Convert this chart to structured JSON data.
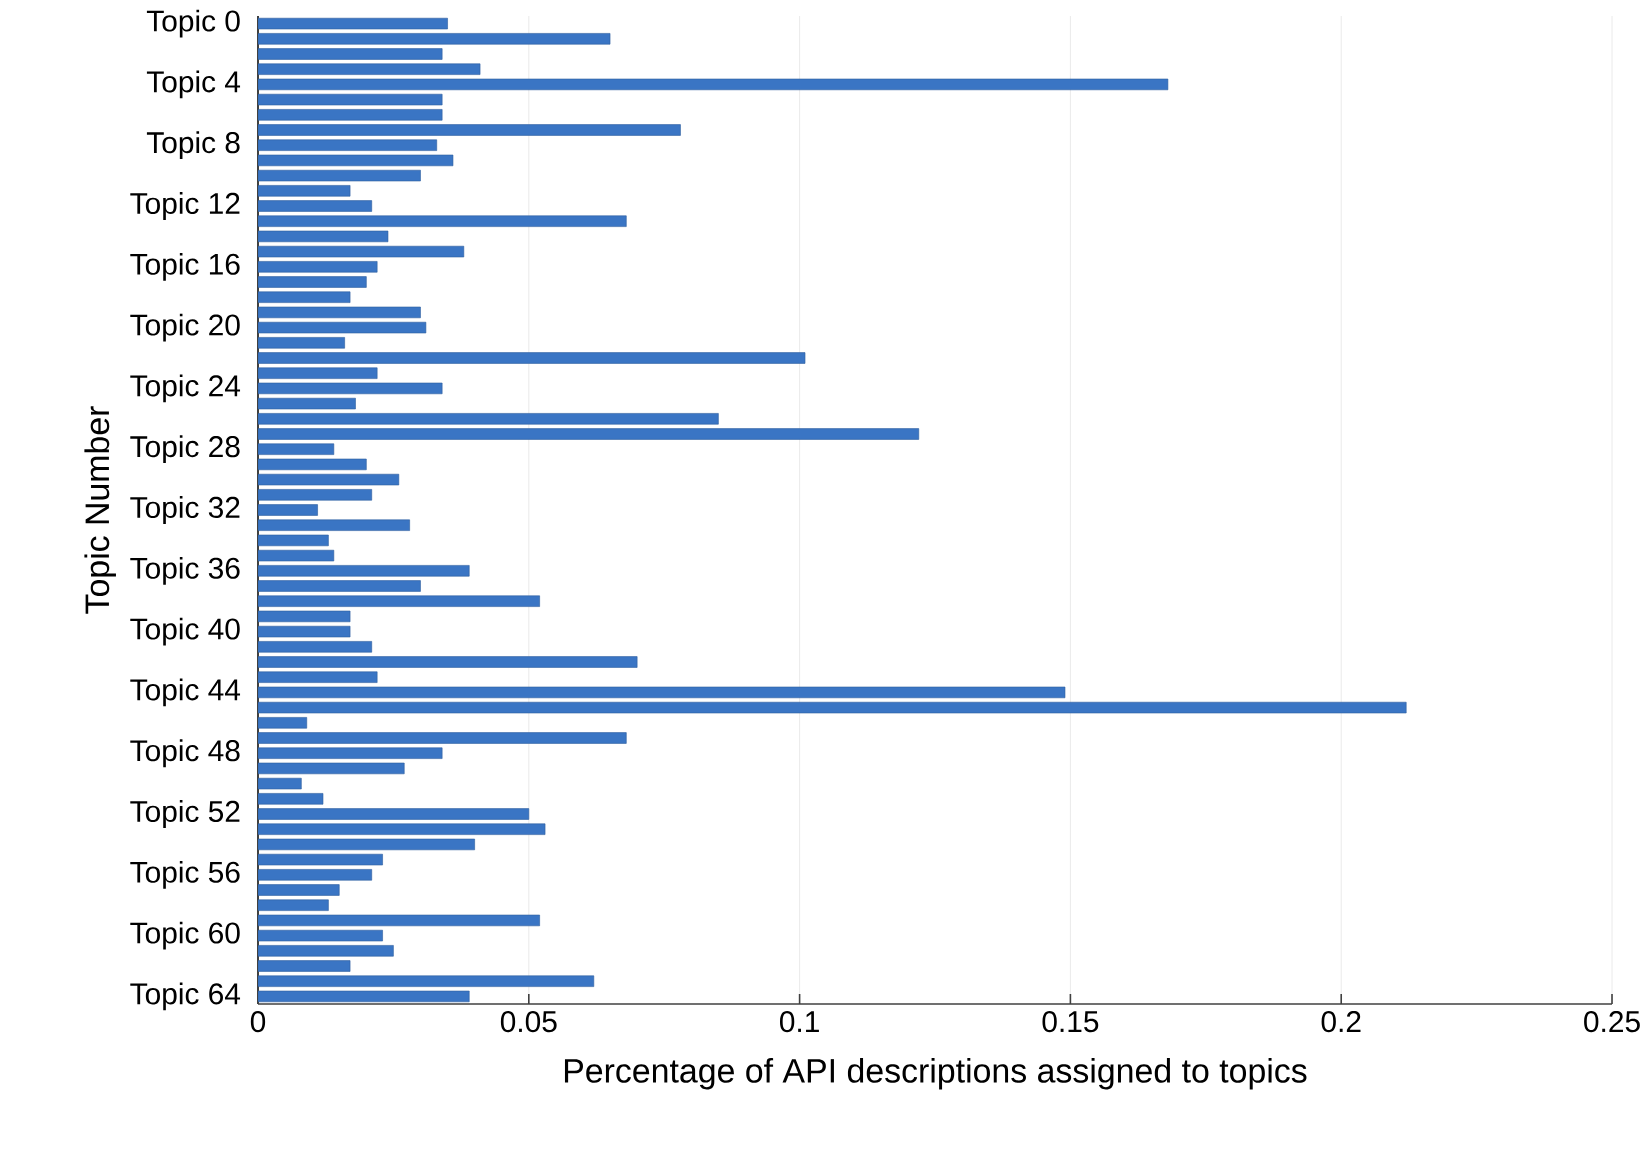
{
  "chart_data": {
    "type": "bar",
    "orientation": "horizontal",
    "xlabel": "Percentage of API descriptions assigned to topics",
    "ylabel": "Topic Number",
    "categories": [
      "Topic 0",
      null,
      null,
      null,
      "Topic 4",
      null,
      null,
      null,
      "Topic 8",
      null,
      null,
      null,
      "Topic 12",
      null,
      null,
      null,
      "Topic 16",
      null,
      null,
      null,
      "Topic 20",
      null,
      null,
      null,
      "Topic 24",
      null,
      null,
      null,
      "Topic 28",
      null,
      null,
      null,
      "Topic 32",
      null,
      null,
      null,
      "Topic 36",
      null,
      null,
      null,
      "Topic 40",
      null,
      null,
      null,
      "Topic 44",
      null,
      null,
      null,
      "Topic 48",
      null,
      null,
      null,
      "Topic 52",
      null,
      null,
      null,
      "Topic 56",
      null,
      null,
      null,
      "Topic 60",
      null,
      null,
      null,
      "Topic 64"
    ],
    "values": [
      0.035,
      0.065,
      0.034,
      0.041,
      0.168,
      0.034,
      0.034,
      0.078,
      0.033,
      0.036,
      0.03,
      0.017,
      0.021,
      0.068,
      0.024,
      0.038,
      0.022,
      0.02,
      0.017,
      0.03,
      0.031,
      0.016,
      0.101,
      0.022,
      0.034,
      0.018,
      0.085,
      0.122,
      0.014,
      0.02,
      0.026,
      0.021,
      0.011,
      0.028,
      0.013,
      0.014,
      0.039,
      0.03,
      0.052,
      0.017,
      0.017,
      0.021,
      0.07,
      0.022,
      0.149,
      0.212,
      0.009,
      0.068,
      0.034,
      0.027,
      0.008,
      0.012,
      0.05,
      0.053,
      0.04,
      0.023,
      0.021,
      0.015,
      0.013,
      0.052,
      0.023,
      0.025,
      0.017,
      0.062,
      0.039
    ],
    "color": "#3a75c4",
    "xlim": [
      0,
      0.25
    ],
    "xticks": [
      0,
      0.05,
      0.1,
      0.15,
      0.2,
      0.25
    ],
    "grid": "x"
  }
}
